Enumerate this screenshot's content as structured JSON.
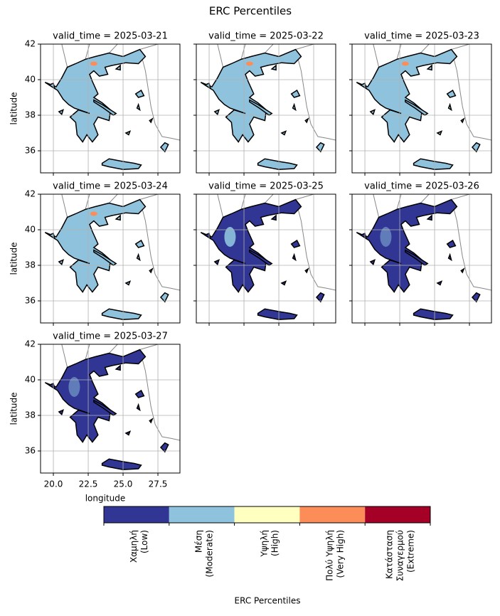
{
  "figure": {
    "title": "ERC Percentiles",
    "panels": [
      {
        "title": "valid_time = 2025-03-21"
      },
      {
        "title": "valid_time = 2025-03-22"
      },
      {
        "title": "valid_time = 2025-03-23"
      },
      {
        "title": "valid_time = 2025-03-24"
      },
      {
        "title": "valid_time = 2025-03-25"
      },
      {
        "title": "valid_time = 2025-03-26"
      },
      {
        "title": "valid_time = 2025-03-27"
      }
    ],
    "xlabel": "longitude",
    "ylabel": "latitude",
    "xlim": [
      19.08,
      29.08
    ],
    "ylim": [
      34.76,
      42
    ],
    "xticks": [
      {
        "value": 20,
        "label": "20.0"
      },
      {
        "value": 22.5,
        "label": "22.5"
      },
      {
        "value": 25,
        "label": "25.0"
      },
      {
        "value": 27.5,
        "label": "27.5"
      }
    ],
    "yticks": [
      36,
      38,
      40,
      42
    ],
    "grid": true,
    "colorbar": {
      "label": "ERC Percentiles",
      "classes": [
        {
          "lines": [
            "Χαμηλή",
            "(Low)"
          ],
          "color": "#313695"
        },
        {
          "lines": [
            "Μέση",
            "(Moderate)"
          ],
          "color": "#8fc3dd"
        },
        {
          "lines": [
            "Υψηλή",
            "(High)"
          ],
          "color": "#ffffbf"
        },
        {
          "lines": [
            "Πολύ Υψηλή",
            "(Very High)"
          ],
          "color": "#fc8d59"
        },
        {
          "lines": [
            "Κατάσταση",
            "Συναγερμού",
            "(Extreme)"
          ],
          "color": "#a50026"
        }
      ]
    }
  }
}
